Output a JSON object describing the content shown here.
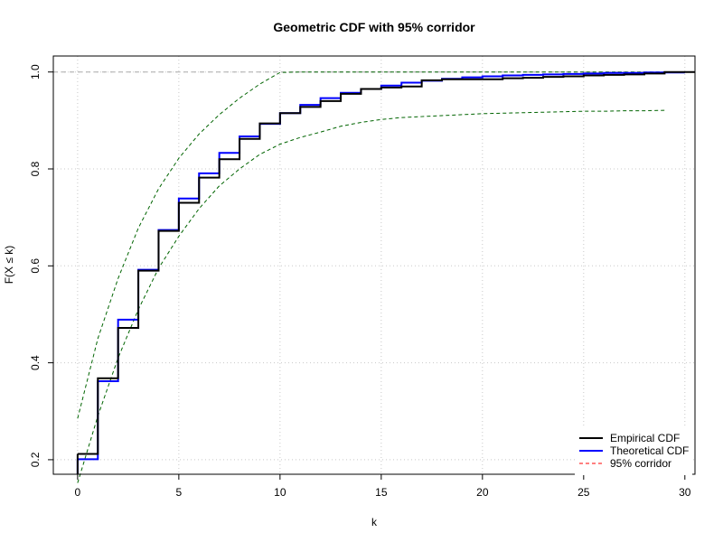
{
  "chart_data": {
    "type": "line",
    "title": "Geometric CDF with 95% corridor",
    "xlabel": "k",
    "ylabel": "F(X ≤ k)",
    "xlim": [
      -1.2,
      30.5
    ],
    "ylim": [
      0.17,
      1.033
    ],
    "xticks": [
      0,
      5,
      10,
      15,
      20,
      25,
      30
    ],
    "yticks": [
      0.2,
      0.4,
      0.6,
      0.8,
      1.0
    ],
    "xtick_labels": [
      "0",
      "5",
      "10",
      "15",
      "20",
      "25",
      "30"
    ],
    "ytick_labels": [
      "0.2",
      "0.4",
      "0.6",
      "0.8",
      "1.0"
    ],
    "grid": true,
    "reference_line": 1.0,
    "legend_position": "bottom-right",
    "colors": {
      "empirical": "#000000",
      "theoretical": "#0000ff",
      "corridor": "#006400",
      "corridor_legend": "#ff0000",
      "grid": "#c8c8c8"
    },
    "series": [
      {
        "name": "Empirical CDF",
        "style": "step",
        "x": [
          0,
          1,
          2,
          3,
          4,
          5,
          6,
          7,
          8,
          9,
          10,
          11,
          12,
          13,
          14,
          15,
          16,
          17,
          18,
          19,
          20,
          21,
          22,
          23,
          24,
          25,
          26,
          27,
          28,
          29,
          30
        ],
        "y": [
          0.212,
          0.368,
          0.472,
          0.59,
          0.672,
          0.73,
          0.782,
          0.82,
          0.862,
          0.894,
          0.915,
          0.928,
          0.94,
          0.955,
          0.965,
          0.968,
          0.97,
          0.983,
          0.985,
          0.985,
          0.985,
          0.987,
          0.988,
          0.99,
          0.991,
          0.993,
          0.994,
          0.995,
          0.997,
          1.0,
          1.0
        ]
      },
      {
        "name": "Theoretical CDF",
        "style": "step",
        "x": [
          0,
          1,
          2,
          3,
          4,
          5,
          6,
          7,
          8,
          9,
          10,
          11,
          12,
          13,
          14,
          15,
          16,
          17,
          18,
          19,
          20,
          21,
          22,
          23,
          24,
          25,
          26,
          27,
          28,
          29
        ],
        "y": [
          0.201,
          0.362,
          0.489,
          0.592,
          0.674,
          0.739,
          0.791,
          0.833,
          0.867,
          0.893,
          0.915,
          0.932,
          0.946,
          0.957,
          0.965,
          0.972,
          0.978,
          0.982,
          0.986,
          0.989,
          0.991,
          0.993,
          0.994,
          0.995,
          0.996,
          0.997,
          0.998,
          0.998,
          0.999,
          0.999
        ]
      },
      {
        "name": "95% corridor",
        "style": "dashed",
        "upper_x": [
          0,
          1,
          2,
          3,
          4,
          5,
          6,
          7,
          8,
          9,
          10,
          11,
          12,
          13,
          14,
          15,
          16,
          17,
          18,
          19,
          20,
          21,
          22,
          23,
          24,
          25,
          26,
          27,
          28,
          29
        ],
        "upper_y": [
          0.285,
          0.45,
          0.574,
          0.678,
          0.759,
          0.822,
          0.872,
          0.912,
          0.946,
          0.975,
          0.999,
          1.0,
          1.0,
          1.0,
          1.0,
          1.0,
          1.0,
          1.0,
          1.0,
          1.0,
          1.0,
          1.0,
          1.0,
          1.0,
          1.0,
          1.0,
          1.0,
          1.0,
          1.0,
          1.0
        ],
        "lower_x": [
          0,
          1,
          2,
          3,
          4,
          5,
          6,
          7,
          8,
          9,
          10,
          11,
          12,
          13,
          14,
          15,
          16,
          17,
          18,
          19,
          20,
          21,
          22,
          23,
          24,
          25,
          26,
          27,
          28,
          29
        ],
        "lower_y": [
          0.152,
          0.29,
          0.41,
          0.51,
          0.595,
          0.661,
          0.718,
          0.765,
          0.8,
          0.83,
          0.851,
          0.865,
          0.876,
          0.888,
          0.896,
          0.902,
          0.906,
          0.908,
          0.91,
          0.912,
          0.914,
          0.915,
          0.916,
          0.917,
          0.918,
          0.919,
          0.919,
          0.92,
          0.92,
          0.921
        ]
      }
    ]
  }
}
